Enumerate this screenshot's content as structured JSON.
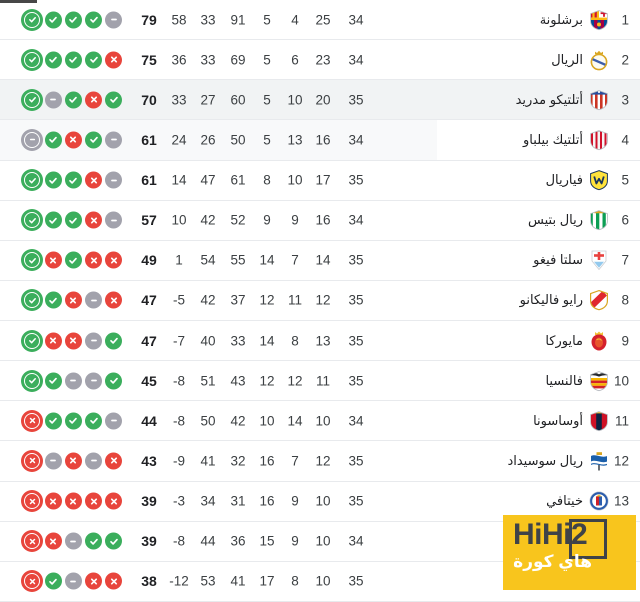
{
  "table": {
    "direction": "rtl",
    "column_keys": [
      "rank",
      "team",
      "played",
      "won",
      "drawn",
      "lost",
      "goals_for",
      "goals_against",
      "goal_difference",
      "points",
      "form_last_5"
    ],
    "form_latest_is_first_icon": true,
    "rows": [
      {
        "rank": "1",
        "team": "برشلونة",
        "crest": "barcelona",
        "played": "34",
        "won": "25",
        "drawn": "4",
        "lost": "5",
        "gf": "91",
        "ga": "33",
        "gd": "58",
        "pts": "79",
        "form": [
          "win",
          "win",
          "win",
          "win",
          "draw"
        ],
        "highlight": "none"
      },
      {
        "rank": "2",
        "team": "الريال",
        "crest": "real-madrid",
        "played": "34",
        "won": "23",
        "drawn": "6",
        "lost": "5",
        "gf": "69",
        "ga": "33",
        "gd": "36",
        "pts": "75",
        "form": [
          "win",
          "win",
          "win",
          "win",
          "loss"
        ],
        "highlight": "none"
      },
      {
        "rank": "3",
        "team": "أتلتيكو مدريد",
        "crest": "atletico-madrid",
        "played": "35",
        "won": "20",
        "drawn": "10",
        "lost": "5",
        "gf": "60",
        "ga": "27",
        "gd": "33",
        "pts": "70",
        "form": [
          "win",
          "draw",
          "win",
          "loss",
          "win"
        ],
        "highlight": "full"
      },
      {
        "rank": "4",
        "team": "أتلتيك بيلباو",
        "crest": "athletic-bilbao",
        "played": "34",
        "won": "16",
        "drawn": "13",
        "lost": "5",
        "gf": "50",
        "ga": "26",
        "gd": "24",
        "pts": "61",
        "form": [
          "draw",
          "win",
          "loss",
          "win",
          "draw"
        ],
        "highlight": "partial"
      },
      {
        "rank": "5",
        "team": "فياريال",
        "crest": "villarreal",
        "played": "35",
        "won": "17",
        "drawn": "10",
        "lost": "8",
        "gf": "61",
        "ga": "47",
        "gd": "14",
        "pts": "61",
        "form": [
          "win",
          "win",
          "win",
          "loss",
          "draw"
        ],
        "highlight": "none"
      },
      {
        "rank": "6",
        "team": "ريال بتيس",
        "crest": "real-betis",
        "played": "34",
        "won": "16",
        "drawn": "9",
        "lost": "9",
        "gf": "52",
        "ga": "42",
        "gd": "10",
        "pts": "57",
        "form": [
          "win",
          "win",
          "win",
          "loss",
          "draw"
        ],
        "highlight": "none"
      },
      {
        "rank": "7",
        "team": "سلتا فيغو",
        "crest": "celta-vigo",
        "played": "35",
        "won": "14",
        "drawn": "7",
        "lost": "14",
        "gf": "55",
        "ga": "54",
        "gd": "1",
        "pts": "49",
        "form": [
          "win",
          "loss",
          "win",
          "loss",
          "loss"
        ],
        "highlight": "none"
      },
      {
        "rank": "8",
        "team": "رايو فاليكانو",
        "crest": "rayo-vallecano",
        "played": "35",
        "won": "12",
        "drawn": "11",
        "lost": "12",
        "gf": "37",
        "ga": "42",
        "gd": "-5",
        "pts": "47",
        "form": [
          "win",
          "win",
          "loss",
          "draw",
          "loss"
        ],
        "highlight": "none"
      },
      {
        "rank": "9",
        "team": "مايوركا",
        "crest": "mallorca",
        "played": "35",
        "won": "13",
        "drawn": "8",
        "lost": "14",
        "gf": "33",
        "ga": "40",
        "gd": "-7",
        "pts": "47",
        "form": [
          "win",
          "loss",
          "loss",
          "draw",
          "win"
        ],
        "highlight": "none"
      },
      {
        "rank": "10",
        "team": "فالنسيا",
        "crest": "valencia",
        "played": "35",
        "won": "11",
        "drawn": "12",
        "lost": "12",
        "gf": "43",
        "ga": "51",
        "gd": "-8",
        "pts": "45",
        "form": [
          "win",
          "win",
          "draw",
          "draw",
          "win"
        ],
        "highlight": "none"
      },
      {
        "rank": "11",
        "team": "أوساسونا",
        "crest": "osasuna",
        "played": "34",
        "won": "10",
        "drawn": "14",
        "lost": "10",
        "gf": "42",
        "ga": "50",
        "gd": "-8",
        "pts": "44",
        "form": [
          "loss",
          "win",
          "win",
          "win",
          "draw"
        ],
        "highlight": "none"
      },
      {
        "rank": "12",
        "team": "ريال سوسيداد",
        "crest": "real-sociedad",
        "played": "35",
        "won": "12",
        "drawn": "7",
        "lost": "16",
        "gf": "32",
        "ga": "41",
        "gd": "-9",
        "pts": "43",
        "form": [
          "loss",
          "draw",
          "loss",
          "draw",
          "loss"
        ],
        "highlight": "none"
      },
      {
        "rank": "13",
        "team": "خيتافي",
        "crest": "getafe",
        "played": "35",
        "won": "10",
        "drawn": "9",
        "lost": "16",
        "gf": "31",
        "ga": "34",
        "gd": "-3",
        "pts": "39",
        "form": [
          "loss",
          "loss",
          "loss",
          "loss",
          "loss"
        ],
        "highlight": "none"
      },
      {
        "rank": "",
        "team": "",
        "crest": "",
        "played": "34",
        "won": "10",
        "drawn": "9",
        "lost": "15",
        "gf": "36",
        "ga": "44",
        "gd": "-8",
        "pts": "39",
        "form": [
          "loss",
          "loss",
          "draw",
          "win",
          "win"
        ],
        "highlight": "none",
        "hidden_by_watermark": true
      },
      {
        "rank": "",
        "team": "",
        "crest": "",
        "played": "35",
        "won": "10",
        "drawn": "8",
        "lost": "17",
        "gf": "41",
        "ga": "53",
        "gd": "-12",
        "pts": "38",
        "form": [
          "loss",
          "win",
          "draw",
          "loss",
          "loss"
        ],
        "highlight": "none",
        "hidden_by_watermark": true
      }
    ]
  },
  "watermark": {
    "title": "HiHi2",
    "subtitle": "هاي كورة",
    "background": "#F8C51D",
    "title_color": "#3F4348",
    "subtitle_color": "#FFFFFF"
  },
  "colors": {
    "win": "#3BAE5C",
    "loss": "#E8453C",
    "draw": "#A2A2AC",
    "row_highlight_full": "#F1F3F4",
    "row_highlight_partial": "#F8F9FA",
    "divider": "#E8EAED",
    "text_primary": "#202124",
    "text_secondary": "#3C4043",
    "background": "#FFFFFF"
  }
}
